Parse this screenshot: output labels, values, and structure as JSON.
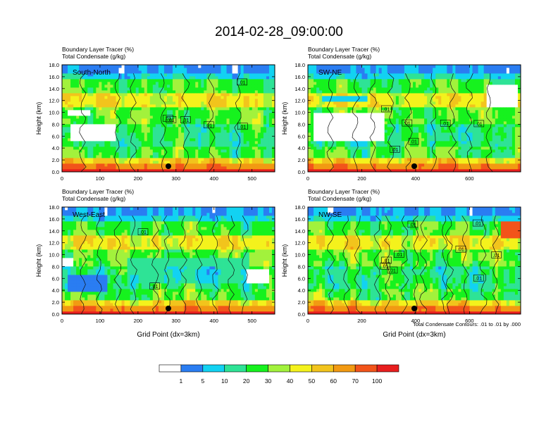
{
  "title": "2014-02-28_09:00:00",
  "palette": [
    "#ffffff",
    "#2a7df2",
    "#12d2f2",
    "#2ee396",
    "#16f21e",
    "#a2f23c",
    "#f4f21c",
    "#f2c41c",
    "#f29a12",
    "#f2541a",
    "#e81e1e"
  ],
  "colorbar_labels": [
    "1",
    "5",
    "10",
    "20",
    "30",
    "40",
    "50",
    "60",
    "70",
    "100"
  ],
  "contour_note": "Total Condensate Contours: .01 to .01 by .000",
  "chart_data": [
    {
      "type": "heatmap",
      "label1": "Boundary Layer Tracer   (%)",
      "label2": "Total Condensate   (g/kg)",
      "panel_name": "South-North",
      "ylabel": "Height (km)",
      "xlabel": "",
      "yticks": [
        "0.0",
        "2.0",
        "4.0",
        "6.0",
        "8.0",
        "10.0",
        "12.0",
        "14.0",
        "16.0",
        "18.0"
      ],
      "xticks": [
        0,
        100,
        200,
        300,
        400,
        500
      ],
      "xlim": [
        0,
        560
      ],
      "ylim": [
        0,
        18
      ],
      "contour_labels": [
        ".01",
        ".01",
        ".01",
        ".01",
        ".01",
        ".01"
      ],
      "marker_x": 280
    },
    {
      "type": "heatmap",
      "label1": "Boundary Layer Tracer   (%)",
      "label2": "Total Condensate   (g/kg)",
      "panel_name": "SW-NE",
      "ylabel": "Height (km)",
      "xlabel": "",
      "yticks": [
        "0.0",
        "2.0",
        "4.0",
        "6.0",
        "8.0",
        "10.0",
        "12.0",
        "14.0",
        "16.0",
        "18.0"
      ],
      "xticks": [
        0,
        200,
        400,
        600
      ],
      "xlim": [
        0,
        790
      ],
      "ylim": [
        0,
        18
      ],
      "contour_labels": [
        ".01",
        ".01",
        ".01",
        ".01",
        ".01",
        ".01"
      ],
      "marker_x": 395
    },
    {
      "type": "heatmap",
      "label1": "Boundary Layer Tracer   (%)",
      "label2": "Total Condensate   (g/kg)",
      "panel_name": "West-East",
      "ylabel": "Height (km)",
      "xlabel": "Grid Point (dx=3km)",
      "yticks": [
        "0.0",
        "2.0",
        "4.0",
        "6.0",
        "8.0",
        "10.0",
        "12.0",
        "14.0",
        "16.0",
        "18.0"
      ],
      "xticks": [
        0,
        100,
        200,
        300,
        400,
        500
      ],
      "xlim": [
        0,
        560
      ],
      "ylim": [
        0,
        18
      ],
      "contour_labels": [
        ".01",
        ".01"
      ],
      "marker_x": 280
    },
    {
      "type": "heatmap",
      "label1": "Boundary Layer Tracer   (%)",
      "label2": "Total Condensate   (g/kg)",
      "panel_name": "NW-SE",
      "ylabel": "Height (km)",
      "xlabel": "Grid Point (dx=3km)",
      "yticks": [
        "0.0",
        "2.0",
        "4.0",
        "6.0",
        "8.0",
        "10.0",
        "12.0",
        "14.0",
        "16.0",
        "18.0"
      ],
      "xticks": [
        0,
        200,
        400,
        600
      ],
      "xlim": [
        0,
        790
      ],
      "ylim": [
        0,
        18
      ],
      "contour_labels": [
        ".01",
        ".01",
        ".01",
        ".01",
        ".01",
        ".01",
        ".01",
        ".01",
        ".01"
      ],
      "marker_x": 395
    }
  ]
}
